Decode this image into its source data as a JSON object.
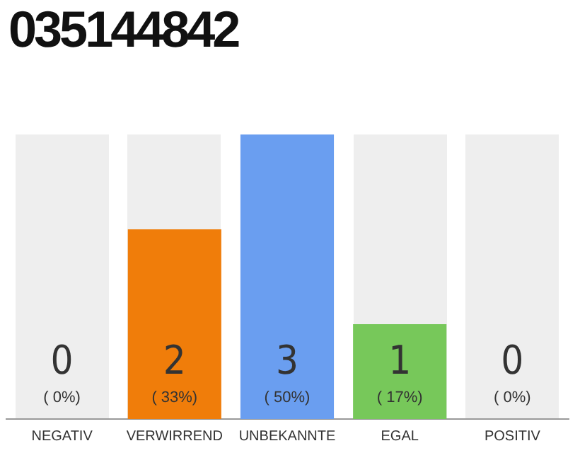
{
  "chart_data": {
    "type": "bar",
    "title": "035144842",
    "categories": [
      "NEGATIV",
      "VERWIRREND",
      "UNBEKANNTE",
      "EGAL",
      "POSITIV"
    ],
    "values": [
      0,
      2,
      3,
      1,
      0
    ],
    "colors": [
      "#e05050",
      "#f07d0a",
      "#6a9ef0",
      "#77c85a",
      "#77c85a"
    ],
    "data_labels": true,
    "annotations": [
      "( 0%)",
      "( 33%)",
      "( 50%)",
      "( 17%)",
      "( 0%)"
    ],
    "tick_labels": "x",
    "grid": false,
    "legend": false
  }
}
